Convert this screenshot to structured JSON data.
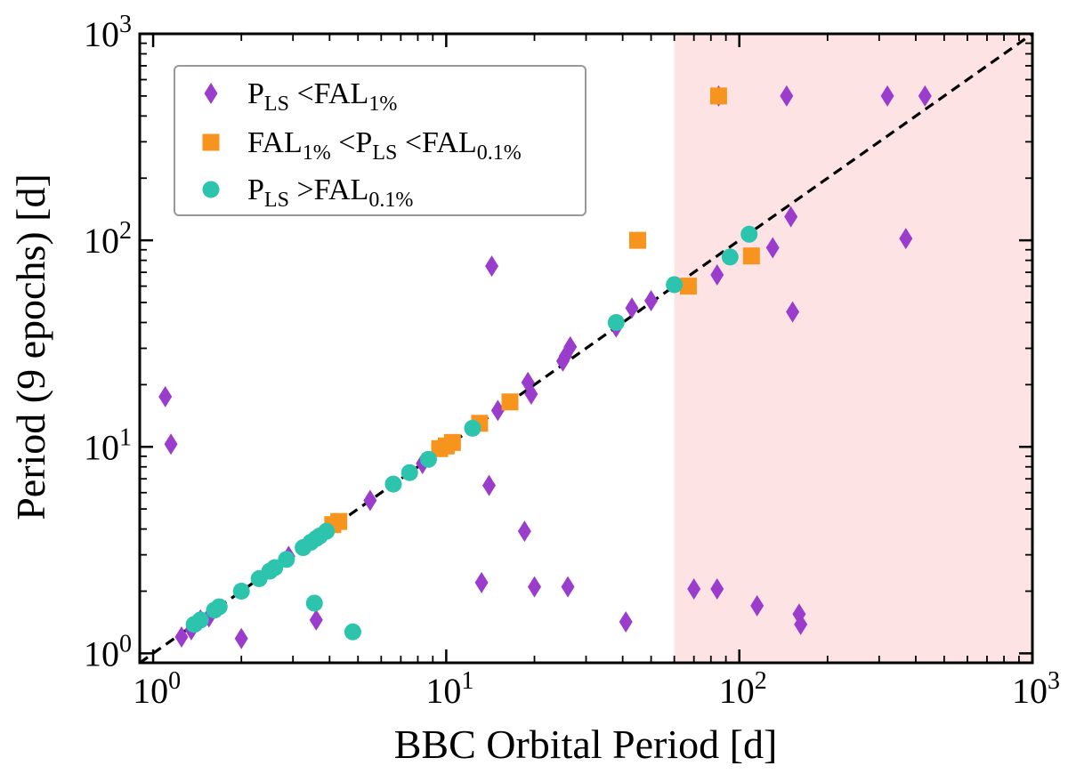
{
  "chart_data": {
    "type": "scatter",
    "xscale": "log",
    "yscale": "log",
    "xlabel": "BBC Orbital Period [d]",
    "ylabel": "Period (9 epochs) [d]",
    "xlim": [
      0.9,
      1000
    ],
    "ylim": [
      0.9,
      1000
    ],
    "x_ticks": [
      {
        "value": 1,
        "base": "10",
        "exp": "0"
      },
      {
        "value": 10,
        "base": "10",
        "exp": "1"
      },
      {
        "value": 100,
        "base": "10",
        "exp": "2"
      },
      {
        "value": 1000,
        "base": "10",
        "exp": "3"
      }
    ],
    "y_ticks": [
      {
        "value": 1,
        "base": "10",
        "exp": "0"
      },
      {
        "value": 10,
        "base": "10",
        "exp": "1"
      },
      {
        "value": 100,
        "base": "10",
        "exp": "2"
      },
      {
        "value": 1000,
        "base": "10",
        "exp": "3"
      }
    ],
    "reference_line": {
      "label": "y = x",
      "style": "dashed",
      "color": "#000000"
    },
    "shaded_region": {
      "x_from": 60,
      "x_to": 1000,
      "color": "#fde3e4"
    },
    "legend_position": "upper-left",
    "series": [
      {
        "name": "P_LS < FAL_1%",
        "legend": {
          "pre": "P",
          "sub1": "LS",
          "mid": " <FAL",
          "sub2": "1%",
          "post": ""
        },
        "marker": "diamond",
        "color": "#9a3dcc",
        "points": [
          [
            1.1,
            17.5
          ],
          [
            1.15,
            10.3
          ],
          [
            1.25,
            1.2
          ],
          [
            1.35,
            1.3
          ],
          [
            1.45,
            1.45
          ],
          [
            1.55,
            1.5
          ],
          [
            2.0,
            1.18
          ],
          [
            2.9,
            2.95
          ],
          [
            3.6,
            1.45
          ],
          [
            5.5,
            5.5
          ],
          [
            8.3,
            8.3
          ],
          [
            13.2,
            2.2
          ],
          [
            14.0,
            6.5
          ],
          [
            14.3,
            75
          ],
          [
            15.0,
            15.0
          ],
          [
            18.5,
            3.9
          ],
          [
            19.0,
            20.5
          ],
          [
            19.5,
            18.0
          ],
          [
            20.0,
            2.1
          ],
          [
            25.0,
            26.0
          ],
          [
            25.5,
            27.5
          ],
          [
            26.0,
            2.1
          ],
          [
            26.5,
            30.5
          ],
          [
            38.0,
            38.0
          ],
          [
            41.0,
            1.42
          ],
          [
            43.0,
            47.0
          ],
          [
            50.0,
            51.0
          ],
          [
            70.0,
            2.05
          ],
          [
            84.0,
            2.05
          ],
          [
            84.0,
            68.0
          ],
          [
            85.0,
            500
          ],
          [
            115.0,
            1.7
          ],
          [
            130.0,
            92
          ],
          [
            145.0,
            500
          ],
          [
            150.0,
            130
          ],
          [
            152.0,
            45
          ],
          [
            160.0,
            1.55
          ],
          [
            162.0,
            1.38
          ],
          [
            320.0,
            500
          ],
          [
            370.0,
            102
          ],
          [
            430.0,
            500
          ]
        ]
      },
      {
        "name": "FAL_1% < P_LS < FAL_0.1%",
        "legend": {
          "pre": "FAL",
          "sub1": "1%",
          "mid": " <P",
          "sub2": "LS",
          "post": " <FAL",
          "sub3": "0.1%"
        },
        "marker": "square",
        "color": "#f7941d",
        "points": [
          [
            4.1,
            4.2
          ],
          [
            4.3,
            4.35
          ],
          [
            9.5,
            9.8
          ],
          [
            10.0,
            10.1
          ],
          [
            10.5,
            10.5
          ],
          [
            13.0,
            13.0
          ],
          [
            16.5,
            16.5
          ],
          [
            45.0,
            100
          ],
          [
            67.0,
            60
          ],
          [
            85.0,
            500
          ],
          [
            110.0,
            84
          ]
        ]
      },
      {
        "name": "P_LS > FAL_0.1%",
        "legend": {
          "pre": "P",
          "sub1": "LS",
          "mid": " >FAL",
          "sub2": "0.1%",
          "post": ""
        },
        "marker": "circle",
        "color": "#2cc4ac",
        "points": [
          [
            1.38,
            1.38
          ],
          [
            1.45,
            1.45
          ],
          [
            1.62,
            1.62
          ],
          [
            1.68,
            1.68
          ],
          [
            2.0,
            2.0
          ],
          [
            2.3,
            2.3
          ],
          [
            2.5,
            2.5
          ],
          [
            2.6,
            2.6
          ],
          [
            2.85,
            2.85
          ],
          [
            3.25,
            3.25
          ],
          [
            3.45,
            3.45
          ],
          [
            3.6,
            3.6
          ],
          [
            3.7,
            3.7
          ],
          [
            3.9,
            3.9
          ],
          [
            3.55,
            1.75
          ],
          [
            4.8,
            1.27
          ],
          [
            6.6,
            6.6
          ],
          [
            7.5,
            7.5
          ],
          [
            8.7,
            8.7
          ],
          [
            12.3,
            12.3
          ],
          [
            38.0,
            40.0
          ],
          [
            60.0,
            61.0
          ],
          [
            93.0,
            83.0
          ],
          [
            108.0,
            107.0
          ]
        ]
      }
    ]
  }
}
